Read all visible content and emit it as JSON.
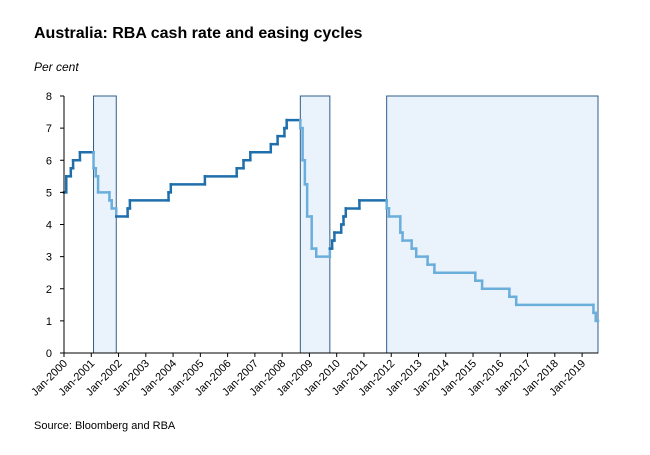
{
  "title": "Australia: RBA cash rate and easing cycles",
  "unit_label": "Per cent",
  "source": "Source: Bloomberg and RBA",
  "chart_data": {
    "type": "line",
    "title": "Australia: RBA cash rate and easing cycles",
    "ylabel": "Per cent",
    "xlabel": "",
    "ylim": [
      0,
      8
    ],
    "yticks": [
      0,
      1,
      2,
      3,
      4,
      5,
      6,
      7,
      8
    ],
    "xlim": [
      "Jan-2000",
      "Aug-2019"
    ],
    "xtick_labels": [
      "Jan-2000",
      "Jan-2001",
      "Jan-2002",
      "Jan-2003",
      "Jan-2004",
      "Jan-2005",
      "Jan-2006",
      "Jan-2007",
      "Jan-2008",
      "Jan-2009",
      "Jan-2010",
      "Jan-2011",
      "Jan-2012",
      "Jan-2013",
      "Jan-2014",
      "Jan-2015",
      "Jan-2016",
      "Jan-2017",
      "Jan-2018",
      "Jan-2019"
    ],
    "easing_cycles": [
      {
        "start": "Feb-2001",
        "end": "Dec-2001"
      },
      {
        "start": "Sep-2008",
        "end": "Oct-2009"
      },
      {
        "start": "Nov-2011",
        "end": "Aug-2019"
      }
    ],
    "series": [
      {
        "color": "#1f6fad",
        "easing_color": "#6aaedb",
        "step": true,
        "points": [
          {
            "date": "Jan-2000",
            "value": 5.0
          },
          {
            "date": "Feb-2000",
            "value": 5.5
          },
          {
            "date": "Apr-2000",
            "value": 5.75
          },
          {
            "date": "May-2000",
            "value": 6.0
          },
          {
            "date": "Aug-2000",
            "value": 6.25
          },
          {
            "date": "Feb-2001",
            "value": 5.75
          },
          {
            "date": "Mar-2001",
            "value": 5.5
          },
          {
            "date": "Apr-2001",
            "value": 5.0
          },
          {
            "date": "Sep-2001",
            "value": 4.75
          },
          {
            "date": "Oct-2001",
            "value": 4.5
          },
          {
            "date": "Dec-2001",
            "value": 4.25
          },
          {
            "date": "May-2002",
            "value": 4.5
          },
          {
            "date": "Jun-2002",
            "value": 4.75
          },
          {
            "date": "Nov-2003",
            "value": 5.0
          },
          {
            "date": "Dec-2003",
            "value": 5.25
          },
          {
            "date": "Mar-2005",
            "value": 5.5
          },
          {
            "date": "May-2006",
            "value": 5.75
          },
          {
            "date": "Aug-2006",
            "value": 6.0
          },
          {
            "date": "Nov-2006",
            "value": 6.25
          },
          {
            "date": "Aug-2007",
            "value": 6.5
          },
          {
            "date": "Nov-2007",
            "value": 6.75
          },
          {
            "date": "Feb-2008",
            "value": 7.0
          },
          {
            "date": "Mar-2008",
            "value": 7.25
          },
          {
            "date": "Sep-2008",
            "value": 7.0
          },
          {
            "date": "Oct-2008",
            "value": 6.0
          },
          {
            "date": "Nov-2008",
            "value": 5.25
          },
          {
            "date": "Dec-2008",
            "value": 4.25
          },
          {
            "date": "Feb-2009",
            "value": 3.25
          },
          {
            "date": "Apr-2009",
            "value": 3.0
          },
          {
            "date": "Oct-2009",
            "value": 3.25
          },
          {
            "date": "Nov-2009",
            "value": 3.5
          },
          {
            "date": "Dec-2009",
            "value": 3.75
          },
          {
            "date": "Mar-2010",
            "value": 4.0
          },
          {
            "date": "Apr-2010",
            "value": 4.25
          },
          {
            "date": "May-2010",
            "value": 4.5
          },
          {
            "date": "Nov-2010",
            "value": 4.75
          },
          {
            "date": "Nov-2011",
            "value": 4.5
          },
          {
            "date": "Dec-2011",
            "value": 4.25
          },
          {
            "date": "May-2012",
            "value": 3.75
          },
          {
            "date": "Jun-2012",
            "value": 3.5
          },
          {
            "date": "Oct-2012",
            "value": 3.25
          },
          {
            "date": "Dec-2012",
            "value": 3.0
          },
          {
            "date": "May-2013",
            "value": 2.75
          },
          {
            "date": "Aug-2013",
            "value": 2.5
          },
          {
            "date": "Feb-2015",
            "value": 2.25
          },
          {
            "date": "May-2015",
            "value": 2.0
          },
          {
            "date": "May-2016",
            "value": 1.75
          },
          {
            "date": "Aug-2016",
            "value": 1.5
          },
          {
            "date": "Jun-2019",
            "value": 1.25
          },
          {
            "date": "Jul-2019",
            "value": 1.0
          },
          {
            "date": "Aug-2019",
            "value": 1.0
          }
        ]
      }
    ],
    "grid": false,
    "legend": "none"
  }
}
